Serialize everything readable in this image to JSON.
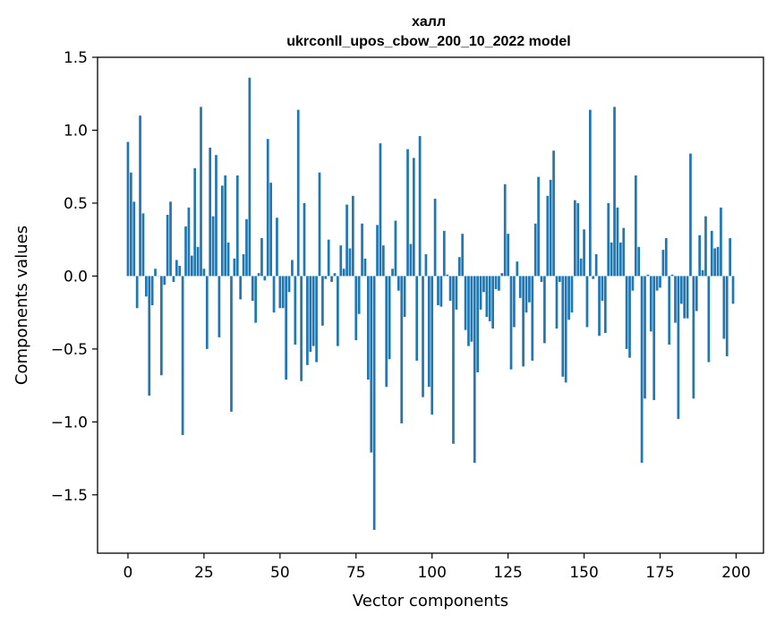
{
  "chart_data": {
    "type": "bar",
    "title": "халл",
    "subtitle": "ukrconll_upos_cbow_200_10_2022 model",
    "xlabel": "Vector components",
    "ylabel": "Components values",
    "xlim": [
      -10,
      209
    ],
    "ylim": [
      -1.9,
      1.5
    ],
    "xticks": [
      0,
      25,
      50,
      75,
      100,
      125,
      150,
      175,
      200
    ],
    "yticks": [
      -1.5,
      -1.0,
      -0.5,
      0.0,
      0.5,
      1.0,
      1.5
    ],
    "ytick_labels": [
      "−1.5",
      "−1.0",
      "−0.5",
      "0.0",
      "0.5",
      "1.0",
      "1.5"
    ],
    "bar_color": "#1f77b4",
    "grid": false,
    "values": [
      0.92,
      0.71,
      0.51,
      -0.22,
      1.1,
      0.43,
      -0.14,
      -0.82,
      -0.2,
      0.05,
      0.0,
      -0.68,
      -0.06,
      0.42,
      0.51,
      -0.04,
      0.11,
      0.07,
      -1.09,
      0.34,
      0.47,
      0.14,
      0.74,
      0.2,
      1.16,
      0.05,
      -0.5,
      0.88,
      0.41,
      0.83,
      -0.42,
      0.62,
      0.69,
      0.23,
      -0.93,
      0.12,
      0.69,
      -0.16,
      0.15,
      0.39,
      1.36,
      -0.17,
      -0.32,
      0.02,
      0.26,
      -0.03,
      0.94,
      0.64,
      -0.25,
      0.4,
      -0.22,
      -0.22,
      -0.71,
      -0.11,
      0.11,
      -0.47,
      1.14,
      -0.72,
      0.5,
      -0.61,
      -0.52,
      -0.48,
      -0.59,
      0.71,
      -0.34,
      -0.02,
      0.25,
      -0.04,
      0.02,
      -0.48,
      0.21,
      0.05,
      0.49,
      0.19,
      0.55,
      -0.44,
      -0.26,
      0.36,
      0.12,
      -0.71,
      -1.21,
      -1.74,
      0.35,
      0.91,
      0.21,
      -0.76,
      -0.57,
      0.05,
      0.38,
      -0.1,
      -1.01,
      -0.28,
      0.87,
      0.22,
      0.81,
      -0.58,
      0.96,
      -0.83,
      0.15,
      -0.76,
      -0.95,
      0.53,
      -0.2,
      -0.21,
      0.31,
      0.01,
      -0.17,
      -1.15,
      -0.23,
      0.13,
      0.29,
      -0.37,
      -0.48,
      -0.45,
      -1.28,
      -0.66,
      -0.23,
      -0.11,
      -0.28,
      -0.31,
      -0.36,
      -0.09,
      -0.1,
      0.02,
      0.63,
      0.29,
      -0.64,
      -0.35,
      0.1,
      -0.15,
      -0.62,
      -0.25,
      -0.18,
      -0.58,
      0.36,
      0.68,
      -0.04,
      -0.46,
      0.55,
      0.66,
      0.86,
      -0.36,
      -0.04,
      -0.69,
      -0.73,
      -0.3,
      -0.25,
      0.52,
      0.5,
      0.12,
      0.32,
      -0.35,
      1.14,
      -0.02,
      0.15,
      -0.41,
      -0.17,
      -0.39,
      0.5,
      0.23,
      1.16,
      0.47,
      0.23,
      0.33,
      -0.5,
      -0.56,
      -0.1,
      0.69,
      0.2,
      -1.28,
      -0.84,
      0.01,
      -0.38,
      -0.85,
      -0.1,
      -0.08,
      0.18,
      0.26,
      -0.47,
      0.01,
      -0.32,
      -0.98,
      -0.19,
      -0.29,
      -0.29,
      0.84,
      -0.84,
      -0.24,
      0.28,
      0.04,
      0.41,
      -0.59,
      0.31,
      0.19,
      0.2,
      0.47,
      -0.43,
      -0.55,
      0.26,
      -0.19
    ]
  }
}
